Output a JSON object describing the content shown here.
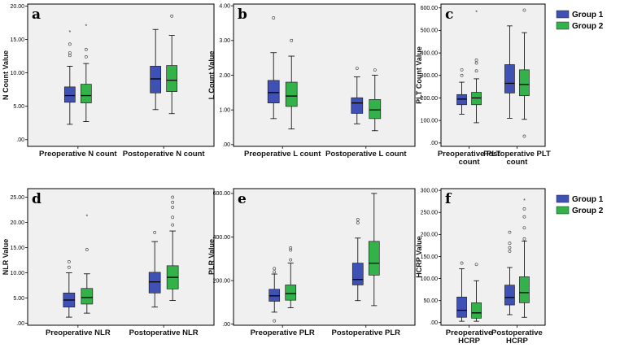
{
  "colors": {
    "group1": "#3F51B5",
    "group2": "#33B24A",
    "plot_bg": "#F0F0F0",
    "axis": "#000000"
  },
  "chart_data": [
    {
      "type": "box",
      "label": "a",
      "ylabel": "N Count Value",
      "yticks": [
        ".00",
        "5.00",
        "10.00",
        "15.00",
        "20.00"
      ],
      "yvals": [
        0,
        5,
        10,
        15,
        20
      ],
      "ylim": [
        -1,
        20.3
      ],
      "categories": [
        "Preoperative N count",
        "Postoperative N count"
      ],
      "legend": false,
      "series": [
        {
          "name": "Group 1",
          "boxes": [
            {
              "min": 2.3,
              "q1": 5.6,
              "med": 6.6,
              "q3": 7.9,
              "max": 11,
              "out": [
                12.6,
                13,
                14.3
              ],
              "ext": [
                16.1
              ]
            },
            {
              "min": 4.5,
              "q1": 7,
              "med": 9.1,
              "q3": 11,
              "max": 16.5,
              "out": [],
              "ext": []
            }
          ]
        },
        {
          "name": "Group 2",
          "boxes": [
            {
              "min": 2.7,
              "q1": 5.5,
              "med": 6.6,
              "q3": 8.3,
              "max": 11.4,
              "out": [
                12.4,
                13.5
              ],
              "ext": [
                17
              ]
            },
            {
              "min": 3.9,
              "q1": 7.2,
              "med": 8.9,
              "q3": 11.1,
              "max": 15.6,
              "out": [
                18.5
              ],
              "ext": []
            }
          ]
        }
      ]
    },
    {
      "type": "box",
      "label": "b",
      "ylabel": "L Count Value",
      "yticks": [
        ".00",
        "1.00",
        "2.00",
        "3.00",
        "4.00"
      ],
      "yvals": [
        0,
        1,
        2,
        3,
        4
      ],
      "ylim": [
        -0.05,
        4.05
      ],
      "categories": [
        "Preoperative L count",
        "Postoperative L count"
      ],
      "legend": false,
      "series": [
        {
          "name": "Group 1",
          "boxes": [
            {
              "min": 0.75,
              "q1": 1.2,
              "med": 1.5,
              "q3": 1.85,
              "max": 2.65,
              "out": [
                3.65
              ],
              "ext": []
            },
            {
              "min": 0.6,
              "q1": 0.9,
              "med": 1.2,
              "q3": 1.35,
              "max": 1.95,
              "out": [
                2.2
              ],
              "ext": []
            }
          ]
        },
        {
          "name": "Group 2",
          "boxes": [
            {
              "min": 0.45,
              "q1": 1.1,
              "med": 1.4,
              "q3": 1.8,
              "max": 2.55,
              "out": [
                3
              ],
              "ext": []
            },
            {
              "min": 0.4,
              "q1": 0.75,
              "med": 1,
              "q3": 1.3,
              "max": 2,
              "out": [
                2.15
              ],
              "ext": []
            }
          ]
        }
      ]
    },
    {
      "type": "box",
      "label": "c",
      "ylabel": "PLT Count Value",
      "yticks": [
        ".00",
        "100.00",
        "200.00",
        "300.00",
        "400.00",
        "500.00",
        "600.00"
      ],
      "yvals": [
        0,
        100,
        200,
        300,
        400,
        500,
        600
      ],
      "ylim": [
        -15,
        617
      ],
      "categories": [
        "Preoperative PLT count",
        "Postoperative PLT count"
      ],
      "legend": true,
      "series": [
        {
          "name": "Group 1",
          "boxes": [
            {
              "min": 128,
              "q1": 170,
              "med": 195,
              "q3": 215,
              "max": 270,
              "out": [
                300,
                325
              ],
              "ext": []
            },
            {
              "min": 110,
              "q1": 222,
              "med": 265,
              "q3": 348,
              "max": 520,
              "out": [],
              "ext": []
            }
          ]
        },
        {
          "name": "Group 2",
          "boxes": [
            {
              "min": 90,
              "q1": 170,
              "med": 200,
              "q3": 225,
              "max": 285,
              "out": [
                320,
                355,
                368
              ],
              "ext": [
                580
              ]
            },
            {
              "min": 105,
              "q1": 210,
              "med": 260,
              "q3": 325,
              "max": 490,
              "out": [
                30,
                590
              ],
              "ext": []
            }
          ]
        }
      ]
    },
    {
      "type": "box",
      "label": "d",
      "ylabel": "NLR Value",
      "yticks": [
        ".00",
        "5.00",
        "10.00",
        "15.00",
        "20.00",
        "25.00"
      ],
      "yvals": [
        0,
        5,
        10,
        15,
        20,
        25
      ],
      "ylim": [
        -0.4,
        26.7
      ],
      "categories": [
        "Preoperative NLR",
        "Postoperative NLR"
      ],
      "legend": false,
      "series": [
        {
          "name": "Group 1",
          "boxes": [
            {
              "min": 1.2,
              "q1": 3.2,
              "med": 4.6,
              "q3": 6,
              "max": 10,
              "out": [
                11.1,
                12.2
              ],
              "ext": []
            },
            {
              "min": 3.2,
              "q1": 6,
              "med": 8.2,
              "q3": 10.1,
              "max": 16.2,
              "out": [
                18
              ],
              "ext": []
            }
          ]
        },
        {
          "name": "Group 2",
          "boxes": [
            {
              "min": 2,
              "q1": 3.8,
              "med": 5.1,
              "q3": 6.9,
              "max": 9.8,
              "out": [
                14.6
              ],
              "ext": [
                21.2
              ]
            },
            {
              "min": 4.5,
              "q1": 6.8,
              "med": 9.1,
              "q3": 11.4,
              "max": 18.3,
              "out": [
                19.5,
                21,
                23,
                24,
                25
              ],
              "ext": []
            }
          ]
        }
      ]
    },
    {
      "type": "box",
      "label": "e",
      "ylabel": "PLR Value",
      "yticks": [
        ".00",
        "200.00",
        "400.00",
        "600.00"
      ],
      "yvals": [
        0,
        200,
        400,
        600
      ],
      "ylim": [
        -5,
        622
      ],
      "categories": [
        "Preoperative PLR",
        "Postoperative PLR"
      ],
      "legend": false,
      "series": [
        {
          "name": "Group 1",
          "boxes": [
            {
              "min": 55,
              "q1": 105,
              "med": 130,
              "q3": 160,
              "max": 230,
              "out": [
                15,
                240,
                255
              ],
              "ext": []
            },
            {
              "min": 108,
              "q1": 180,
              "med": 205,
              "q3": 280,
              "max": 395,
              "out": [
                465,
                480
              ],
              "ext": []
            }
          ]
        },
        {
          "name": "Group 2",
          "boxes": [
            {
              "min": 75,
              "q1": 110,
              "med": 140,
              "q3": 180,
              "max": 280,
              "out": [
                295,
                340,
                350
              ],
              "ext": []
            },
            {
              "min": 85,
              "q1": 225,
              "med": 280,
              "q3": 380,
              "max": 600,
              "out": [],
              "ext": []
            }
          ]
        }
      ]
    },
    {
      "type": "box",
      "label": "f",
      "ylabel": "HCRP Value",
      "yticks": [
        ".00",
        "50.00",
        "100.00",
        "150.00",
        "200.00",
        "250.00",
        "300.00"
      ],
      "yvals": [
        0,
        50,
        100,
        150,
        200,
        250,
        300
      ],
      "ylim": [
        -6,
        304
      ],
      "categories": [
        "Preoperative HCRP",
        "Postoperative HCRP"
      ],
      "legend": true,
      "series": [
        {
          "name": "Group 1",
          "boxes": [
            {
              "min": 3,
              "q1": 12,
              "med": 28,
              "q3": 58,
              "max": 122,
              "out": [
                135
              ],
              "ext": []
            },
            {
              "min": 18,
              "q1": 40,
              "med": 57,
              "q3": 85,
              "max": 125,
              "out": [
                162,
                170,
                180,
                205
              ],
              "ext": []
            }
          ]
        },
        {
          "name": "Group 2",
          "boxes": [
            {
              "min": 3,
              "q1": 10,
              "med": 22,
              "q3": 45,
              "max": 95,
              "out": [
                132
              ],
              "ext": []
            },
            {
              "min": 12,
              "q1": 45,
              "med": 68,
              "q3": 104,
              "max": 185,
              "out": [
                190,
                215,
                240,
                258
              ],
              "ext": [
                277
              ]
            }
          ]
        }
      ]
    }
  ]
}
